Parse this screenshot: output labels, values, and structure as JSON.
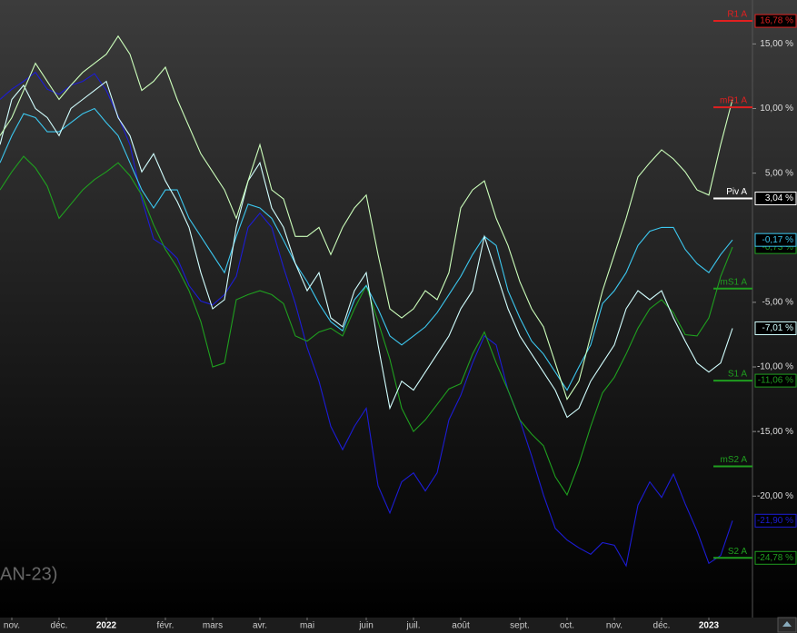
{
  "chart_data": {
    "type": "line",
    "watermark": "AN-23)",
    "categories": [
      null,
      "nov.",
      null,
      null,
      null,
      "déc.",
      null,
      null,
      null,
      "2022",
      null,
      null,
      null,
      null,
      "févr.",
      null,
      null,
      null,
      "mars",
      null,
      null,
      null,
      "avr.",
      null,
      null,
      null,
      "mai",
      null,
      null,
      null,
      null,
      "juin",
      null,
      null,
      null,
      "juil.",
      null,
      null,
      null,
      "août",
      null,
      null,
      null,
      null,
      "sept.",
      null,
      null,
      null,
      "oct.",
      null,
      null,
      null,
      "nov.",
      null,
      null,
      null,
      "déc.",
      null,
      null,
      null,
      "2023",
      null,
      null
    ],
    "ylim": [
      -29.4,
      18.4
    ],
    "yticks": [
      {
        "value": 15,
        "label": "15,00 %"
      },
      {
        "value": 10,
        "label": "10,00 %"
      },
      {
        "value": 5,
        "label": "5,00 %"
      },
      {
        "value": -5,
        "label": "-5,00 %"
      },
      {
        "value": -10,
        "label": "-10,00 %"
      },
      {
        "value": -15,
        "label": "-15,00 %"
      },
      {
        "value": -20,
        "label": "-20,00 %"
      }
    ],
    "series": [
      {
        "color": "#1c1cd6",
        "end_label": "-21,90 %",
        "values": [
          10.7,
          11.5,
          12.1,
          12.8,
          11.5,
          11.1,
          11.8,
          12.1,
          12.7,
          11.4,
          9.4,
          7.2,
          3.0,
          -0.1,
          -0.7,
          -1.6,
          -3.7,
          -4.9,
          -5.2,
          -4.4,
          -3.0,
          0.8,
          1.9,
          0.8,
          -2.3,
          -5.1,
          -8.5,
          -11.1,
          -14.6,
          -16.4,
          -14.6,
          -13.2,
          -19.2,
          -21.3,
          -18.9,
          -18.2,
          -19.6,
          -18.2,
          -14.1,
          -12.2,
          -9.7,
          -7.6,
          -8.3,
          -11.8,
          -14.1,
          -16.9,
          -19.9,
          -22.5,
          -23.4,
          -24.0,
          -24.5,
          -23.6,
          -23.8,
          -25.4,
          -20.7,
          -18.9,
          -20.1,
          -18.3,
          -20.6,
          -22.7,
          -25.2,
          -24.6,
          -21.9
        ]
      },
      {
        "color": "#1fa01f",
        "end_label": "-0,73 %",
        "values": [
          3.7,
          5.1,
          6.3,
          5.4,
          4.0,
          1.5,
          2.6,
          3.7,
          4.5,
          5.1,
          5.8,
          4.8,
          3.3,
          1.0,
          -0.9,
          -2.3,
          -4.1,
          -6.5,
          -10.0,
          -9.7,
          -4.8,
          -4.4,
          -4.1,
          -4.4,
          -5.1,
          -7.6,
          -8.0,
          -7.3,
          -7.0,
          -7.6,
          -5.5,
          -3.7,
          -6.5,
          -9.4,
          -13.2,
          -15.0,
          -14.1,
          -12.9,
          -11.7,
          -11.3,
          -9.0,
          -7.3,
          -9.7,
          -11.8,
          -14.1,
          -15.2,
          -16.1,
          -18.5,
          -19.9,
          -17.5,
          -14.6,
          -12.0,
          -10.8,
          -9.0,
          -7.0,
          -5.5,
          -4.8,
          -5.8,
          -7.5,
          -7.6,
          -6.2,
          -3.0,
          -0.73
        ]
      },
      {
        "color": "#3cc8f0",
        "end_label": "-0,17 %",
        "values": [
          5.8,
          7.9,
          9.6,
          9.3,
          8.2,
          8.2,
          8.9,
          9.6,
          10.0,
          8.9,
          7.9,
          5.8,
          3.7,
          2.3,
          3.7,
          3.7,
          1.5,
          0.1,
          -1.3,
          -2.7,
          0.1,
          2.6,
          2.3,
          1.5,
          -0.2,
          -2.0,
          -3.4,
          -5.1,
          -6.5,
          -7.2,
          -4.8,
          -3.7,
          -5.5,
          -7.6,
          -8.3,
          -7.6,
          -6.9,
          -5.8,
          -4.4,
          -3.0,
          -1.3,
          0.1,
          -0.6,
          -4.1,
          -6.2,
          -8.0,
          -9.0,
          -10.4,
          -11.8,
          -10.0,
          -8.3,
          -5.1,
          -4.1,
          -2.7,
          -0.6,
          0.5,
          0.8,
          0.8,
          -0.9,
          -2.0,
          -2.7,
          -1.3,
          -0.17
        ]
      },
      {
        "color": "#d2ffff",
        "end_label": "-7,01 %",
        "values": [
          7.2,
          10.7,
          11.8,
          10.0,
          9.3,
          7.9,
          10.0,
          10.7,
          11.4,
          12.1,
          9.3,
          7.9,
          5.1,
          6.5,
          4.4,
          2.8,
          0.8,
          -2.7,
          -5.5,
          -4.8,
          0.8,
          4.4,
          5.8,
          2.3,
          0.8,
          -2.0,
          -4.1,
          -2.7,
          -6.2,
          -6.9,
          -4.1,
          -2.7,
          -8.3,
          -13.2,
          -11.1,
          -11.8,
          -10.4,
          -9.0,
          -7.6,
          -5.5,
          -4.1,
          0.1,
          -2.7,
          -5.5,
          -7.6,
          -9.0,
          -10.4,
          -11.8,
          -13.9,
          -13.2,
          -11.1,
          -9.7,
          -8.3,
          -5.5,
          -4.1,
          -4.8,
          -4.1,
          -6.2,
          -8.0,
          -9.7,
          -10.4,
          -9.7,
          -7.01
        ]
      },
      {
        "color": "#ccffbb",
        "values": [
          7.9,
          9.3,
          11.4,
          13.5,
          12.1,
          10.7,
          11.8,
          12.8,
          13.5,
          14.2,
          15.6,
          14.2,
          11.4,
          12.1,
          13.2,
          10.7,
          8.6,
          6.5,
          5.1,
          3.7,
          1.5,
          4.4,
          7.2,
          3.7,
          3.0,
          0.1,
          0.1,
          0.8,
          -1.3,
          0.8,
          2.3,
          3.3,
          -1.3,
          -5.5,
          -6.2,
          -5.5,
          -4.1,
          -4.8,
          -2.7,
          2.3,
          3.7,
          4.4,
          1.5,
          -0.6,
          -3.4,
          -5.5,
          -6.9,
          -9.7,
          -12.5,
          -11.1,
          -7.6,
          -4.1,
          -1.3,
          1.5,
          4.7,
          5.8,
          6.8,
          6.1,
          5.1,
          3.7,
          3.3,
          7.2,
          10.7
        ]
      }
    ],
    "levels": [
      {
        "name": "R1 A",
        "value": 16.78,
        "label": "16,78 %",
        "color": "#e02020"
      },
      {
        "name": "mR1 A",
        "value": 10.1,
        "color": "#e02020"
      },
      {
        "name": "Piv A",
        "value": 3.04,
        "label": "3,04 %",
        "color": "#ffffff"
      },
      {
        "name": "mS1 A",
        "value": -3.94,
        "color": "#1f9e1f"
      },
      {
        "name": "S1 A",
        "value": -11.06,
        "label": "-11,06 %",
        "color": "#1f9e1f"
      },
      {
        "name": "mS2 A",
        "value": -17.7,
        "color": "#1f9e1f"
      },
      {
        "name": "S2 A",
        "value": -24.78,
        "label": "-24,78 %",
        "color": "#1f9e1f"
      }
    ]
  }
}
